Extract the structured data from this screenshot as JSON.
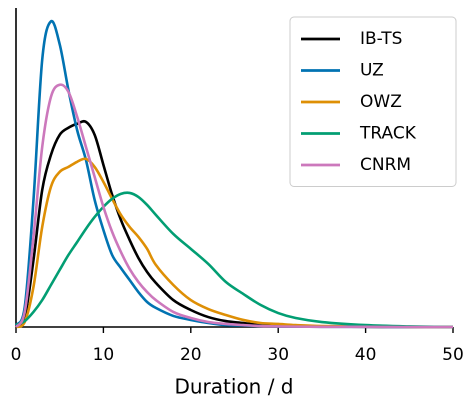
{
  "chart_data": {
    "type": "line",
    "x_label": "Duration / d",
    "x": [
      0,
      1,
      2,
      3,
      4,
      5,
      6,
      7,
      8,
      9,
      10,
      11,
      12,
      13,
      14,
      15,
      16,
      18,
      20,
      22,
      24,
      26,
      28,
      30,
      32,
      35,
      40,
      45,
      50
    ],
    "xlim": [
      0,
      50
    ],
    "xticks": [
      0,
      10,
      20,
      30,
      40,
      50
    ],
    "ylim": [
      0,
      0.167
    ],
    "legend": "upper right",
    "series": [
      {
        "name": "IB-TS",
        "color": "#000000",
        "values": [
          0.0005,
          0.0052,
          0.0351,
          0.0718,
          0.0901,
          0.1006,
          0.1043,
          0.1064,
          0.1074,
          0.1006,
          0.0849,
          0.0692,
          0.0561,
          0.0456,
          0.0362,
          0.0288,
          0.0231,
          0.0141,
          0.0089,
          0.0052,
          0.0031,
          0.0021,
          0.001,
          0.0008,
          0.0005,
          0.0003,
          0.0001,
          0,
          0
        ]
      },
      {
        "name": "UZ",
        "color": "#0173b2",
        "values": [
          0.001,
          0.0105,
          0.0665,
          0.14,
          0.16,
          0.148,
          0.124,
          0.103,
          0.0875,
          0.0665,
          0.0508,
          0.0377,
          0.0309,
          0.0246,
          0.0183,
          0.0131,
          0.01,
          0.0058,
          0.0037,
          0.0021,
          0.001,
          0.0008,
          0.0005,
          0.0003,
          0.0002,
          0.0001,
          0.0001,
          0,
          0
        ]
      },
      {
        "name": "OWZ",
        "color": "#de8f05",
        "values": [
          0,
          0.0026,
          0.021,
          0.0524,
          0.0734,
          0.0812,
          0.0838,
          0.0865,
          0.088,
          0.0838,
          0.076,
          0.0671,
          0.0587,
          0.0524,
          0.0472,
          0.0409,
          0.0325,
          0.022,
          0.0141,
          0.0094,
          0.0063,
          0.0037,
          0.0021,
          0.0016,
          0.001,
          0.0005,
          0.0003,
          0.0001,
          0
        ]
      },
      {
        "name": "TRACK",
        "color": "#029e73",
        "values": [
          0.001,
          0.0031,
          0.0079,
          0.0141,
          0.022,
          0.0299,
          0.0377,
          0.0445,
          0.0514,
          0.0576,
          0.0629,
          0.0671,
          0.0697,
          0.0702,
          0.0681,
          0.0639,
          0.0587,
          0.0487,
          0.0409,
          0.033,
          0.0236,
          0.0173,
          0.0115,
          0.0073,
          0.0047,
          0.0026,
          0.001,
          0.0003,
          0
        ]
      },
      {
        "name": "CNRM",
        "color": "#cc78bc",
        "values": [
          0,
          0.0079,
          0.0472,
          0.0943,
          0.1205,
          0.1268,
          0.1231,
          0.11,
          0.0943,
          0.0786,
          0.0629,
          0.0498,
          0.0393,
          0.0304,
          0.0236,
          0.0183,
          0.0141,
          0.0079,
          0.0047,
          0.0026,
          0.0016,
          0.001,
          0.0005,
          0.0003,
          0.0002,
          0.0001,
          0.0001,
          0,
          0
        ]
      }
    ]
  }
}
